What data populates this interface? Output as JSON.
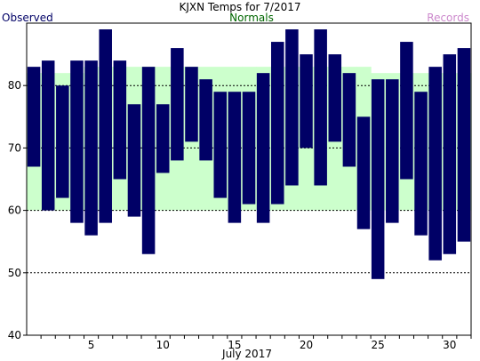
{
  "chart_data": {
    "type": "bar",
    "title": "KJXN Temps for 7/2017",
    "legend": {
      "observed": "Observed",
      "normals": "Normals",
      "records": "Records"
    },
    "xlabel": "July 2017",
    "ylabel": "",
    "ylim": [
      40,
      90
    ],
    "yticks": [
      40,
      50,
      60,
      70,
      80
    ],
    "xticks": [
      5,
      10,
      15,
      20,
      25,
      30
    ],
    "days": [
      1,
      2,
      3,
      4,
      5,
      6,
      7,
      8,
      9,
      10,
      11,
      12,
      13,
      14,
      15,
      16,
      17,
      18,
      19,
      20,
      21,
      22,
      23,
      24,
      25,
      26,
      27,
      28,
      29,
      30,
      31
    ],
    "series": [
      {
        "name": "Observed",
        "low": [
          67,
          60,
          62,
          58,
          56,
          58,
          65,
          59,
          53,
          66,
          68,
          71,
          68,
          62,
          58,
          61,
          58,
          61,
          64,
          70,
          64,
          71,
          67,
          57,
          49,
          58,
          65,
          56,
          52,
          53,
          55
        ],
        "high": [
          83,
          84,
          80,
          84,
          84,
          89,
          84,
          77,
          83,
          77,
          86,
          83,
          81,
          79,
          79,
          79,
          82,
          87,
          89,
          85,
          89,
          85,
          82,
          75,
          81,
          81,
          87,
          79,
          83,
          85,
          86
        ]
      },
      {
        "name": "Normals",
        "low": [
          60,
          60,
          60,
          60,
          60,
          60,
          60,
          60,
          60,
          60,
          60,
          60,
          60,
          60,
          60,
          60,
          60,
          60,
          60,
          60,
          60,
          60,
          60,
          60,
          60,
          60,
          60,
          60,
          60,
          60,
          60
        ],
        "high": [
          82,
          82,
          82,
          82,
          83,
          83,
          83,
          83,
          83,
          83,
          83,
          83,
          83,
          83,
          83,
          83,
          83,
          83,
          83,
          83,
          83,
          83,
          83,
          83,
          82,
          82,
          82,
          82,
          82,
          82,
          82
        ]
      }
    ],
    "grid": {
      "horizontal_dashed_at": [
        50,
        60,
        70,
        80
      ]
    },
    "colors": {
      "observed": "#000066",
      "normals_fill": "#ccffcc",
      "normals_text": "#006600",
      "records_text": "#cc88cc",
      "grid": "#000000"
    }
  }
}
